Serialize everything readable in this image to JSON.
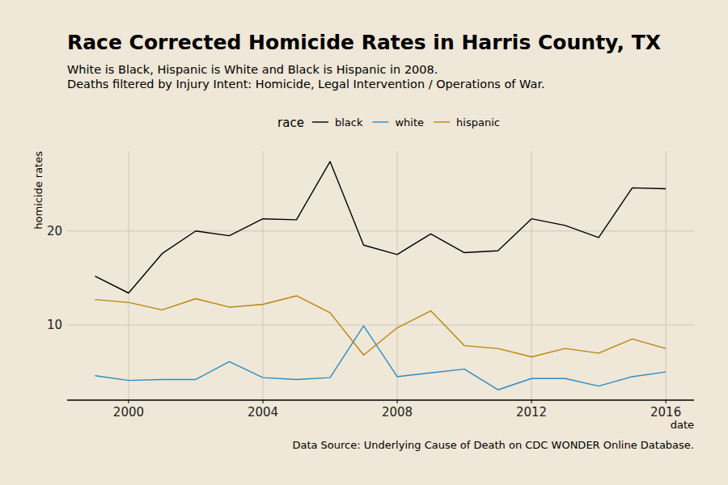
{
  "chart_data": {
    "type": "line",
    "title": "Race Corrected Homicide Rates in Harris County, TX",
    "subtitle": [
      "White is Black, Hispanic is White and Black is Hispanic in 2008.",
      "Deaths filtered by Injury Intent: Homicide, Legal Intervention / Operations of War."
    ],
    "caption": "Data Source: Underlying Cause of Death on CDC WONDER Online Database.",
    "x_label": "date",
    "y_label": "homicide rates",
    "legend_title": "race",
    "legend": "top",
    "grid": true,
    "x": [
      1999,
      2000,
      2001,
      2002,
      2003,
      2004,
      2005,
      2006,
      2007,
      2008,
      2009,
      2010,
      2011,
      2012,
      2013,
      2014,
      2015,
      2016
    ],
    "xlim": [
      1998.17,
      2016.84
    ],
    "xticks": [
      2000,
      2004,
      2008,
      2012,
      2016
    ],
    "ylim": [
      2.0,
      28.5
    ],
    "yticks": [
      10,
      20
    ],
    "series": [
      {
        "name": "black",
        "color": "#000000",
        "values": [
          15.2,
          13.4,
          17.6,
          20.0,
          19.5,
          21.3,
          21.2,
          27.4,
          18.5,
          17.5,
          19.7,
          17.7,
          17.9,
          21.3,
          20.6,
          19.3,
          24.6,
          24.5
        ]
      },
      {
        "name": "white",
        "color": "#2b8cc4",
        "values": [
          4.6,
          4.1,
          4.2,
          4.2,
          6.1,
          4.4,
          4.2,
          4.4,
          9.9,
          4.5,
          4.9,
          5.3,
          3.1,
          4.3,
          4.3,
          3.5,
          4.5,
          5.0
        ]
      },
      {
        "name": "hispanic",
        "color": "#b8860b",
        "values": [
          12.7,
          12.4,
          11.6,
          12.8,
          11.9,
          12.2,
          13.1,
          11.3,
          6.8,
          9.7,
          11.5,
          7.8,
          7.5,
          6.6,
          7.5,
          7.0,
          8.5,
          7.5
        ]
      }
    ]
  }
}
